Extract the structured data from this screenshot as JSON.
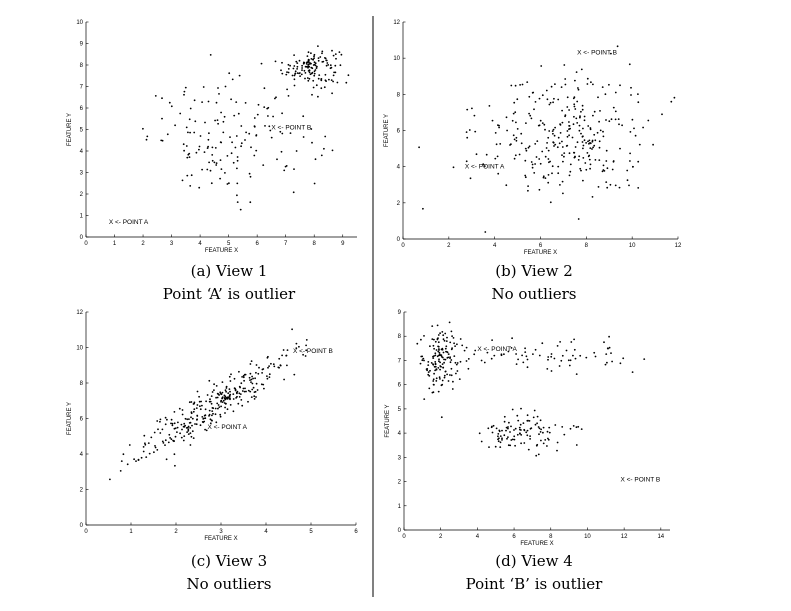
{
  "chart_data": [
    {
      "type": "scatter",
      "caption_line1": "(a) View 1",
      "caption_line2": "Point ‘A’ is outlier",
      "xlabel": "FEATURE X",
      "ylabel": "FEATURE Y",
      "xlim": [
        0,
        9.5
      ],
      "ylim": [
        0,
        10
      ],
      "xticks": [
        0,
        1,
        2,
        3,
        4,
        5,
        6,
        7,
        8,
        9
      ],
      "yticks": [
        0,
        1,
        2,
        3,
        4,
        5,
        6,
        7,
        8,
        9,
        10
      ],
      "clusters": [
        {
          "cx": 7.9,
          "cy": 7.9,
          "sx": 0.5,
          "sy": 0.45,
          "n": 140
        },
        {
          "cx": 5.2,
          "cy": 4.6,
          "sx": 1.5,
          "sy": 1.3,
          "n": 160
        }
      ],
      "annotations": [
        {
          "text": "X <- POINT A",
          "x": 0.8,
          "y": 0.6
        },
        {
          "text": "X <- POINT B",
          "x": 6.5,
          "y": 5.0
        }
      ]
    },
    {
      "type": "scatter",
      "caption_line1": "(b) View 2",
      "caption_line2": "No outliers",
      "xlabel": "FEATURE X",
      "ylabel": "FEATURE Y",
      "xlim": [
        0,
        12
      ],
      "ylim": [
        0,
        12
      ],
      "xticks": [
        0,
        2,
        4,
        6,
        8,
        10,
        12
      ],
      "yticks": [
        0,
        2,
        4,
        6,
        8,
        10,
        12
      ],
      "clusters": [
        {
          "cx": 7.0,
          "cy": 5.8,
          "sx": 1.9,
          "sy": 1.8,
          "n": 320
        }
      ],
      "annotations": [
        {
          "text": "X <- POINT A",
          "x": 2.7,
          "y": 3.9
        },
        {
          "text": "X <- POINT B",
          "x": 7.6,
          "y": 10.2
        }
      ]
    },
    {
      "type": "scatter",
      "caption_line1": "(c) View 3",
      "caption_line2": "No outliers",
      "xlabel": "FEATURE X",
      "ylabel": "FEATURE Y",
      "xlim": [
        0,
        6
      ],
      "ylim": [
        0,
        12
      ],
      "xticks": [
        0,
        1,
        2,
        3,
        4,
        5,
        6
      ],
      "yticks": [
        0,
        2,
        4,
        6,
        8,
        10,
        12
      ],
      "clusters": [
        {
          "cx": 2.9,
          "cy": 6.8,
          "sx": 0.9,
          "sy": 0.6,
          "n": 320,
          "slope": 1.6
        }
      ],
      "annotations": [
        {
          "text": "X <- POINT A",
          "x": 2.7,
          "y": 5.4
        },
        {
          "text": "X <- POINT B",
          "x": 4.6,
          "y": 9.7
        }
      ]
    },
    {
      "type": "scatter",
      "caption_line1": "(d) View 4",
      "caption_line2": "Point ‘B’ is outlier",
      "xlabel": "FEATURE X",
      "ylabel": "FEATURE Y",
      "xlim": [
        0,
        14.5
      ],
      "ylim": [
        0,
        9
      ],
      "xticks": [
        0,
        2,
        4,
        6,
        8,
        10,
        12,
        14
      ],
      "yticks": [
        0,
        1,
        2,
        3,
        4,
        5,
        6,
        7,
        8,
        9
      ],
      "clusters": [
        {
          "cx": 2.0,
          "cy": 7.0,
          "sx": 0.55,
          "sy": 0.7,
          "n": 150
        },
        {
          "cx": 6.5,
          "cy": 4.0,
          "sx": 1.2,
          "sy": 0.4,
          "n": 110
        },
        {
          "cx": 8.0,
          "cy": 7.2,
          "sx": 2.4,
          "sy": 0.35,
          "n": 70
        }
      ],
      "annotations": [
        {
          "text": "X <- POINT A",
          "x": 4.0,
          "y": 7.4
        },
        {
          "text": "X <- POINT B",
          "x": 11.8,
          "y": 2.0
        }
      ]
    }
  ]
}
